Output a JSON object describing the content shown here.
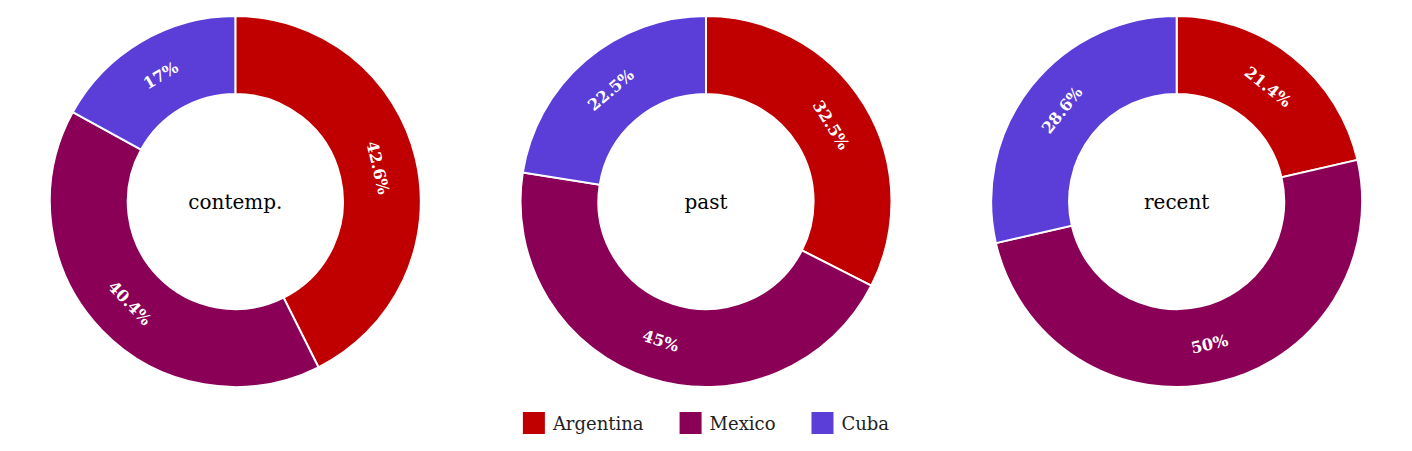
{
  "chart_data": [
    {
      "type": "pie",
      "title": "contemp.",
      "categories": [
        "Argentina",
        "Mexico",
        "Cuba"
      ],
      "values": [
        42.6,
        40.4,
        17.0
      ],
      "value_labels": [
        "42.6%",
        "40.4%",
        "17%"
      ],
      "colors": [
        "#C00000",
        "#8B0057",
        "#5B3DD8"
      ],
      "data_labels": true,
      "legend": "bottom"
    },
    {
      "type": "pie",
      "title": "past",
      "categories": [
        "Argentina",
        "Mexico",
        "Cuba"
      ],
      "values": [
        32.5,
        45.0,
        22.5
      ],
      "value_labels": [
        "32.5%",
        "45%",
        "22.5%"
      ],
      "colors": [
        "#C00000",
        "#8B0057",
        "#5B3DD8"
      ],
      "data_labels": true
    },
    {
      "type": "pie",
      "title": "recent",
      "categories": [
        "Argentina",
        "Mexico",
        "Cuba"
      ],
      "values": [
        21.4,
        50.0,
        28.6
      ],
      "value_labels": [
        "21.4%",
        "50%",
        "28.6%"
      ],
      "colors": [
        "#C00000",
        "#8B0057",
        "#5B3DD8"
      ],
      "data_labels": true
    }
  ]
}
